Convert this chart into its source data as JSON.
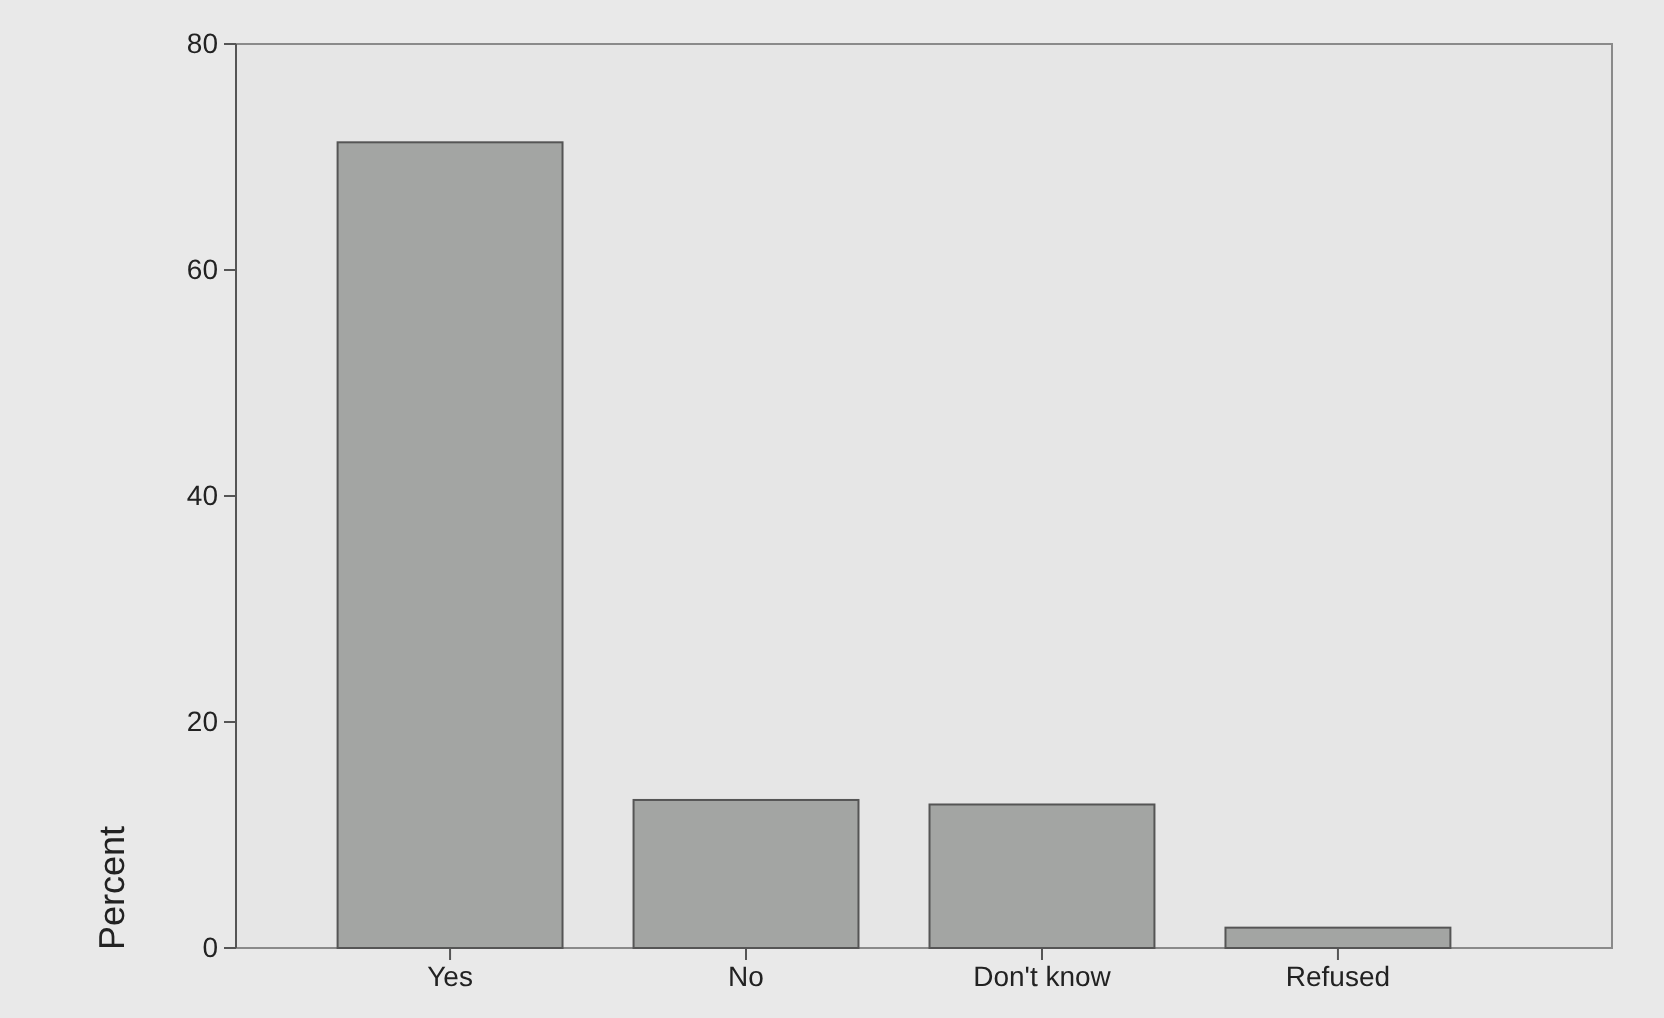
{
  "chart_data": {
    "type": "bar",
    "ylabel": "Percent",
    "categories": [
      "Yes",
      "No",
      "Don't know",
      "Refused"
    ],
    "values": [
      71.3,
      13.1,
      12.7,
      1.8
    ],
    "color": "#a3a5a3",
    "ylim": [
      0,
      80
    ],
    "yticks": [
      0,
      20,
      40,
      60,
      80
    ],
    "grid": false
  }
}
